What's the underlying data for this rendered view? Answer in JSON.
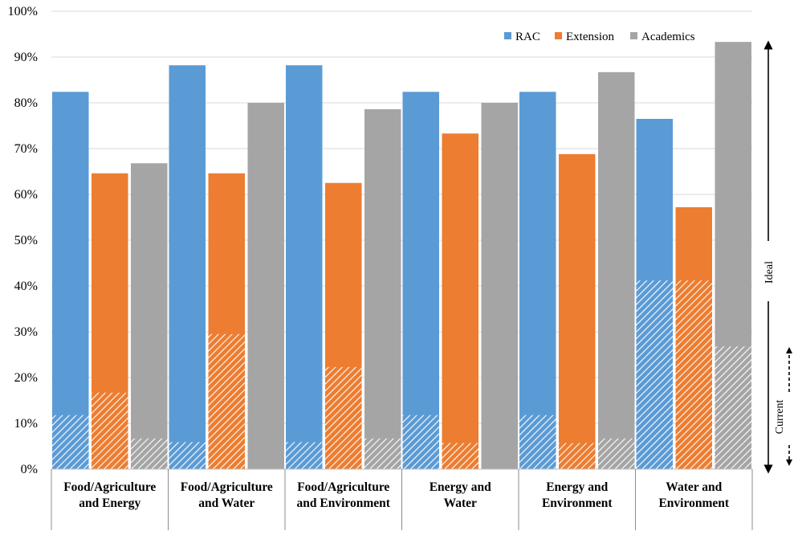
{
  "chart_data": {
    "type": "bar",
    "title": "",
    "xlabel": "",
    "ylabel": "",
    "ylim": [
      0,
      100
    ],
    "y_ticks": [
      "0%",
      "10%",
      "20%",
      "30%",
      "40%",
      "50%",
      "60%",
      "70%",
      "80%",
      "90%",
      "100%"
    ],
    "y_tick_values": [
      0,
      10,
      20,
      30,
      40,
      50,
      60,
      70,
      80,
      90,
      100
    ],
    "grid": true,
    "legend_position": "top-right",
    "categories": [
      [
        "Food/Agriculture",
        "and Energy"
      ],
      [
        "Food/Agriculture",
        "and Water"
      ],
      [
        "Food/Agriculture",
        "and Environment"
      ],
      [
        "Energy and",
        "Water"
      ],
      [
        "Energy and",
        "Environment"
      ],
      [
        "Water and",
        "Environment"
      ]
    ],
    "series": [
      {
        "name": "RAC",
        "color": "#5b9bd5",
        "ideal": [
          82.4,
          88.2,
          88.2,
          82.4,
          82.4,
          76.5
        ],
        "current": [
          11.8,
          5.9,
          5.9,
          11.8,
          11.8,
          41.2
        ]
      },
      {
        "name": "Extension",
        "color": "#ed7d31",
        "ideal": [
          64.6,
          64.6,
          62.5,
          73.3,
          68.8,
          57.2
        ],
        "current": [
          16.7,
          29.5,
          22.3,
          5.7,
          5.7,
          41.2
        ]
      },
      {
        "name": "Academics",
        "color": "#a5a5a5",
        "ideal": [
          66.8,
          80.0,
          78.6,
          80.0,
          86.7,
          93.3
        ],
        "current": [
          6.7,
          0,
          6.7,
          0,
          6.7,
          26.8
        ]
      }
    ],
    "annotations": {
      "ideal": "Ideal",
      "current": "Current"
    }
  }
}
